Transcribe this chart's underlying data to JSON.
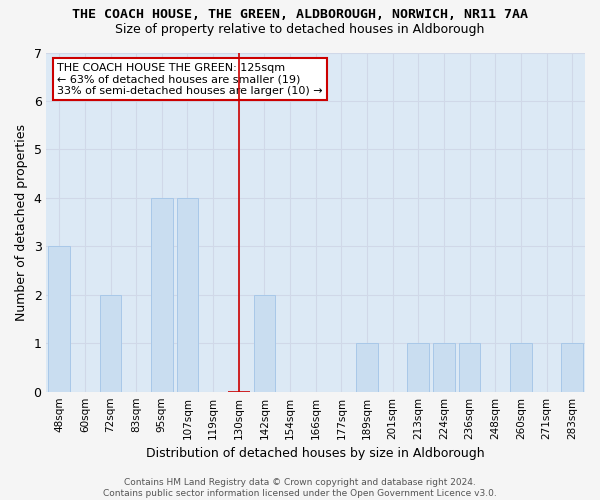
{
  "title": "THE COACH HOUSE, THE GREEN, ALDBOROUGH, NORWICH, NR11 7AA",
  "subtitle": "Size of property relative to detached houses in Aldborough",
  "xlabel": "Distribution of detached houses by size in Aldborough",
  "ylabel": "Number of detached properties",
  "categories": [
    "48sqm",
    "60sqm",
    "72sqm",
    "83sqm",
    "95sqm",
    "107sqm",
    "119sqm",
    "130sqm",
    "142sqm",
    "154sqm",
    "166sqm",
    "177sqm",
    "189sqm",
    "201sqm",
    "213sqm",
    "224sqm",
    "236sqm",
    "248sqm",
    "260sqm",
    "271sqm",
    "283sqm"
  ],
  "values": [
    3,
    0,
    2,
    0,
    4,
    4,
    0,
    0,
    2,
    0,
    0,
    0,
    1,
    0,
    1,
    1,
    1,
    0,
    1,
    0,
    1
  ],
  "highlight_index": 7,
  "bar_color": "#c9ddf0",
  "bar_edge_color": "#a8c8e8",
  "highlight_line_color": "#cc0000",
  "grid_color": "#d0d8e8",
  "bg_color": "#dce9f5",
  "fig_bg_color": "#f5f5f5",
  "annotation_text": "THE COACH HOUSE THE GREEN: 125sqm\n← 63% of detached houses are smaller (19)\n33% of semi-detached houses are larger (10) →",
  "annotation_box_color": "#ffffff",
  "annotation_box_edge": "#cc0000",
  "footer": "Contains HM Land Registry data © Crown copyright and database right 2024.\nContains public sector information licensed under the Open Government Licence v3.0.",
  "ylim": [
    0,
    7
  ],
  "yticks": [
    0,
    1,
    2,
    3,
    4,
    5,
    6,
    7
  ]
}
